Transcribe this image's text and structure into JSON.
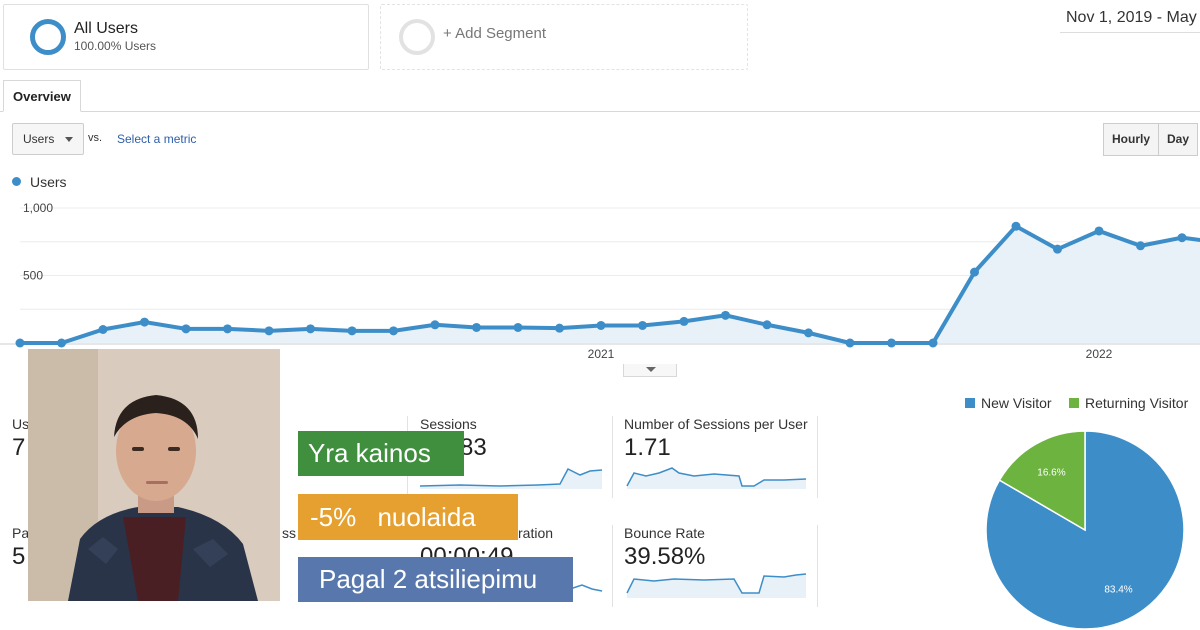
{
  "segments": {
    "all_users": {
      "title": "All Users",
      "subtitle": "100.00% Users"
    },
    "add_segment": {
      "label": "+ Add Segment"
    }
  },
  "date_range": "Nov 1, 2019 - May",
  "tabs": [
    {
      "label": "Overview",
      "active": true
    }
  ],
  "controls": {
    "metric_select": "Users",
    "vs_label": "vs.",
    "select_metric_link": "Select a metric",
    "granularity": [
      "Hourly",
      "Day"
    ]
  },
  "chart_legend": "Users",
  "chart_data": {
    "type": "area",
    "series": [
      {
        "name": "Users",
        "color": "#3d8ec8",
        "values": [
          0,
          0,
          100,
          155,
          105,
          105,
          90,
          105,
          90,
          90,
          135,
          115,
          115,
          110,
          130,
          130,
          160,
          205,
          135,
          75,
          0,
          0,
          0,
          525,
          865,
          695,
          830,
          720,
          780,
          740
        ]
      }
    ],
    "x_tick_labels": [
      {
        "label": "2021",
        "index": 14
      },
      {
        "label": "2022",
        "index": 26
      }
    ],
    "y_ticks": [
      {
        "label": "1,000",
        "value": 1000
      },
      {
        "label": "500",
        "value": 500
      }
    ],
    "ylim": [
      0,
      1000
    ],
    "grid": true
  },
  "kpis": [
    {
      "label": "Us",
      "value": "7"
    },
    {
      "label": "Sessions",
      "value": "83"
    },
    {
      "label": "Number of Sessions per User",
      "value": "1.71"
    },
    {
      "label": "Pa",
      "value": "5"
    },
    {
      "label": "ss",
      "value": ""
    },
    {
      "label": "ration",
      "value": "00:00:49"
    },
    {
      "label": "Bounce Rate",
      "value": "39.58%"
    }
  ],
  "visitor_pie": {
    "type": "pie",
    "legend": [
      {
        "name": "New Visitor",
        "color": "#3d8ec8"
      },
      {
        "name": "Returning Visitor",
        "color": "#6db33f"
      }
    ],
    "slices": [
      {
        "name": "New Visitor",
        "value": 83.4,
        "label": "83.4%",
        "color": "#3d8ec8"
      },
      {
        "name": "Returning Visitor",
        "value": 16.6,
        "label": "16.6%",
        "color": "#6db33f"
      }
    ]
  },
  "promo": {
    "line1": "Yra kainos",
    "line2": "-5%   nuolaida",
    "line3": "Pagal 2 atsiliepimu"
  }
}
